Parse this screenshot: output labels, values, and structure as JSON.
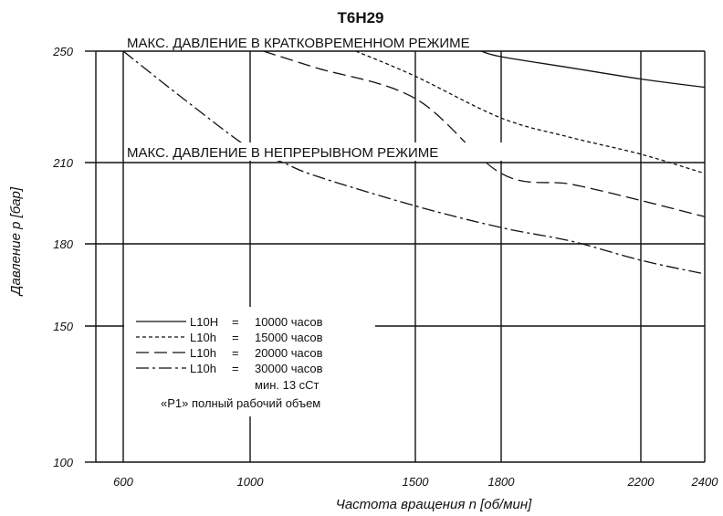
{
  "chart_data": {
    "type": "line",
    "title": "T6H29",
    "xlabel": "Частота вращения n [об/мин]",
    "ylabel": "Давление p [бар]",
    "xlim": [
      500,
      2400
    ],
    "ylim": [
      100,
      250
    ],
    "x_ticks": [
      {
        "value": 600,
        "label": "600"
      },
      {
        "value": 1000,
        "label": "1000"
      },
      {
        "value": 1500,
        "label": "1500"
      },
      {
        "value": 1800,
        "label": "1800"
      },
      {
        "value": 2200,
        "label": "2200"
      },
      {
        "value": 2400,
        "label": "2400"
      }
    ],
    "y_ticks": [
      {
        "value": 100,
        "label": "100"
      },
      {
        "value": 150,
        "label": "150"
      },
      {
        "value": 180,
        "label": "180"
      },
      {
        "value": 210,
        "label": "210"
      },
      {
        "value": 250,
        "label": "250"
      }
    ],
    "grid": true,
    "annotations": [
      {
        "text": "МАКС. ДАВЛЕНИЕ В КРАТКОВРЕМЕННОМ РЕЖИМЕ",
        "y": 250
      },
      {
        "text": "МАКС. ДАВЛЕНИЕ В НЕПРЕРЫВНОМ РЕЖИМЕ",
        "y": 210
      }
    ],
    "series": [
      {
        "name": "L10H = 10000 часов",
        "dash": "",
        "x": [
          1730,
          1800,
          2000,
          2200,
          2400
        ],
        "y": [
          250,
          248,
          244,
          240,
          237
        ]
      },
      {
        "name": "L10h = 15000 часов",
        "dash": "4,3",
        "x": [
          1320,
          1500,
          1800,
          2000,
          2200,
          2400
        ],
        "y": [
          250,
          241,
          226,
          219,
          213,
          206
        ]
      },
      {
        "name": "L10h = 20000 часов",
        "dash": "14,6",
        "x": [
          1040,
          1200,
          1500,
          1800,
          2000,
          2200,
          2400
        ],
        "y": [
          250,
          244,
          233,
          206,
          202,
          196,
          190
        ]
      },
      {
        "name": "L10h = 30000 часов",
        "dash": "14,4,3,4",
        "x": [
          600,
          800,
          1000,
          1100,
          1200,
          1500,
          1800,
          2000,
          2200,
          2400
        ],
        "y": [
          250,
          232,
          215,
          210,
          205,
          194,
          186,
          181,
          174,
          169
        ]
      }
    ],
    "legend": {
      "placement": "bottom-left",
      "entries": [
        {
          "label": "L10H",
          "eq": "=",
          "value": "10000 часов"
        },
        {
          "label": "L10h",
          "eq": "=",
          "value": "15000 часов"
        },
        {
          "label": "L10h",
          "eq": "=",
          "value": "20000 часов"
        },
        {
          "label": "L10h",
          "eq": "=",
          "value": "30000 часов"
        }
      ],
      "notes": [
        "мин. 13 сСт",
        "«P1» полный рабочий объем"
      ]
    }
  }
}
